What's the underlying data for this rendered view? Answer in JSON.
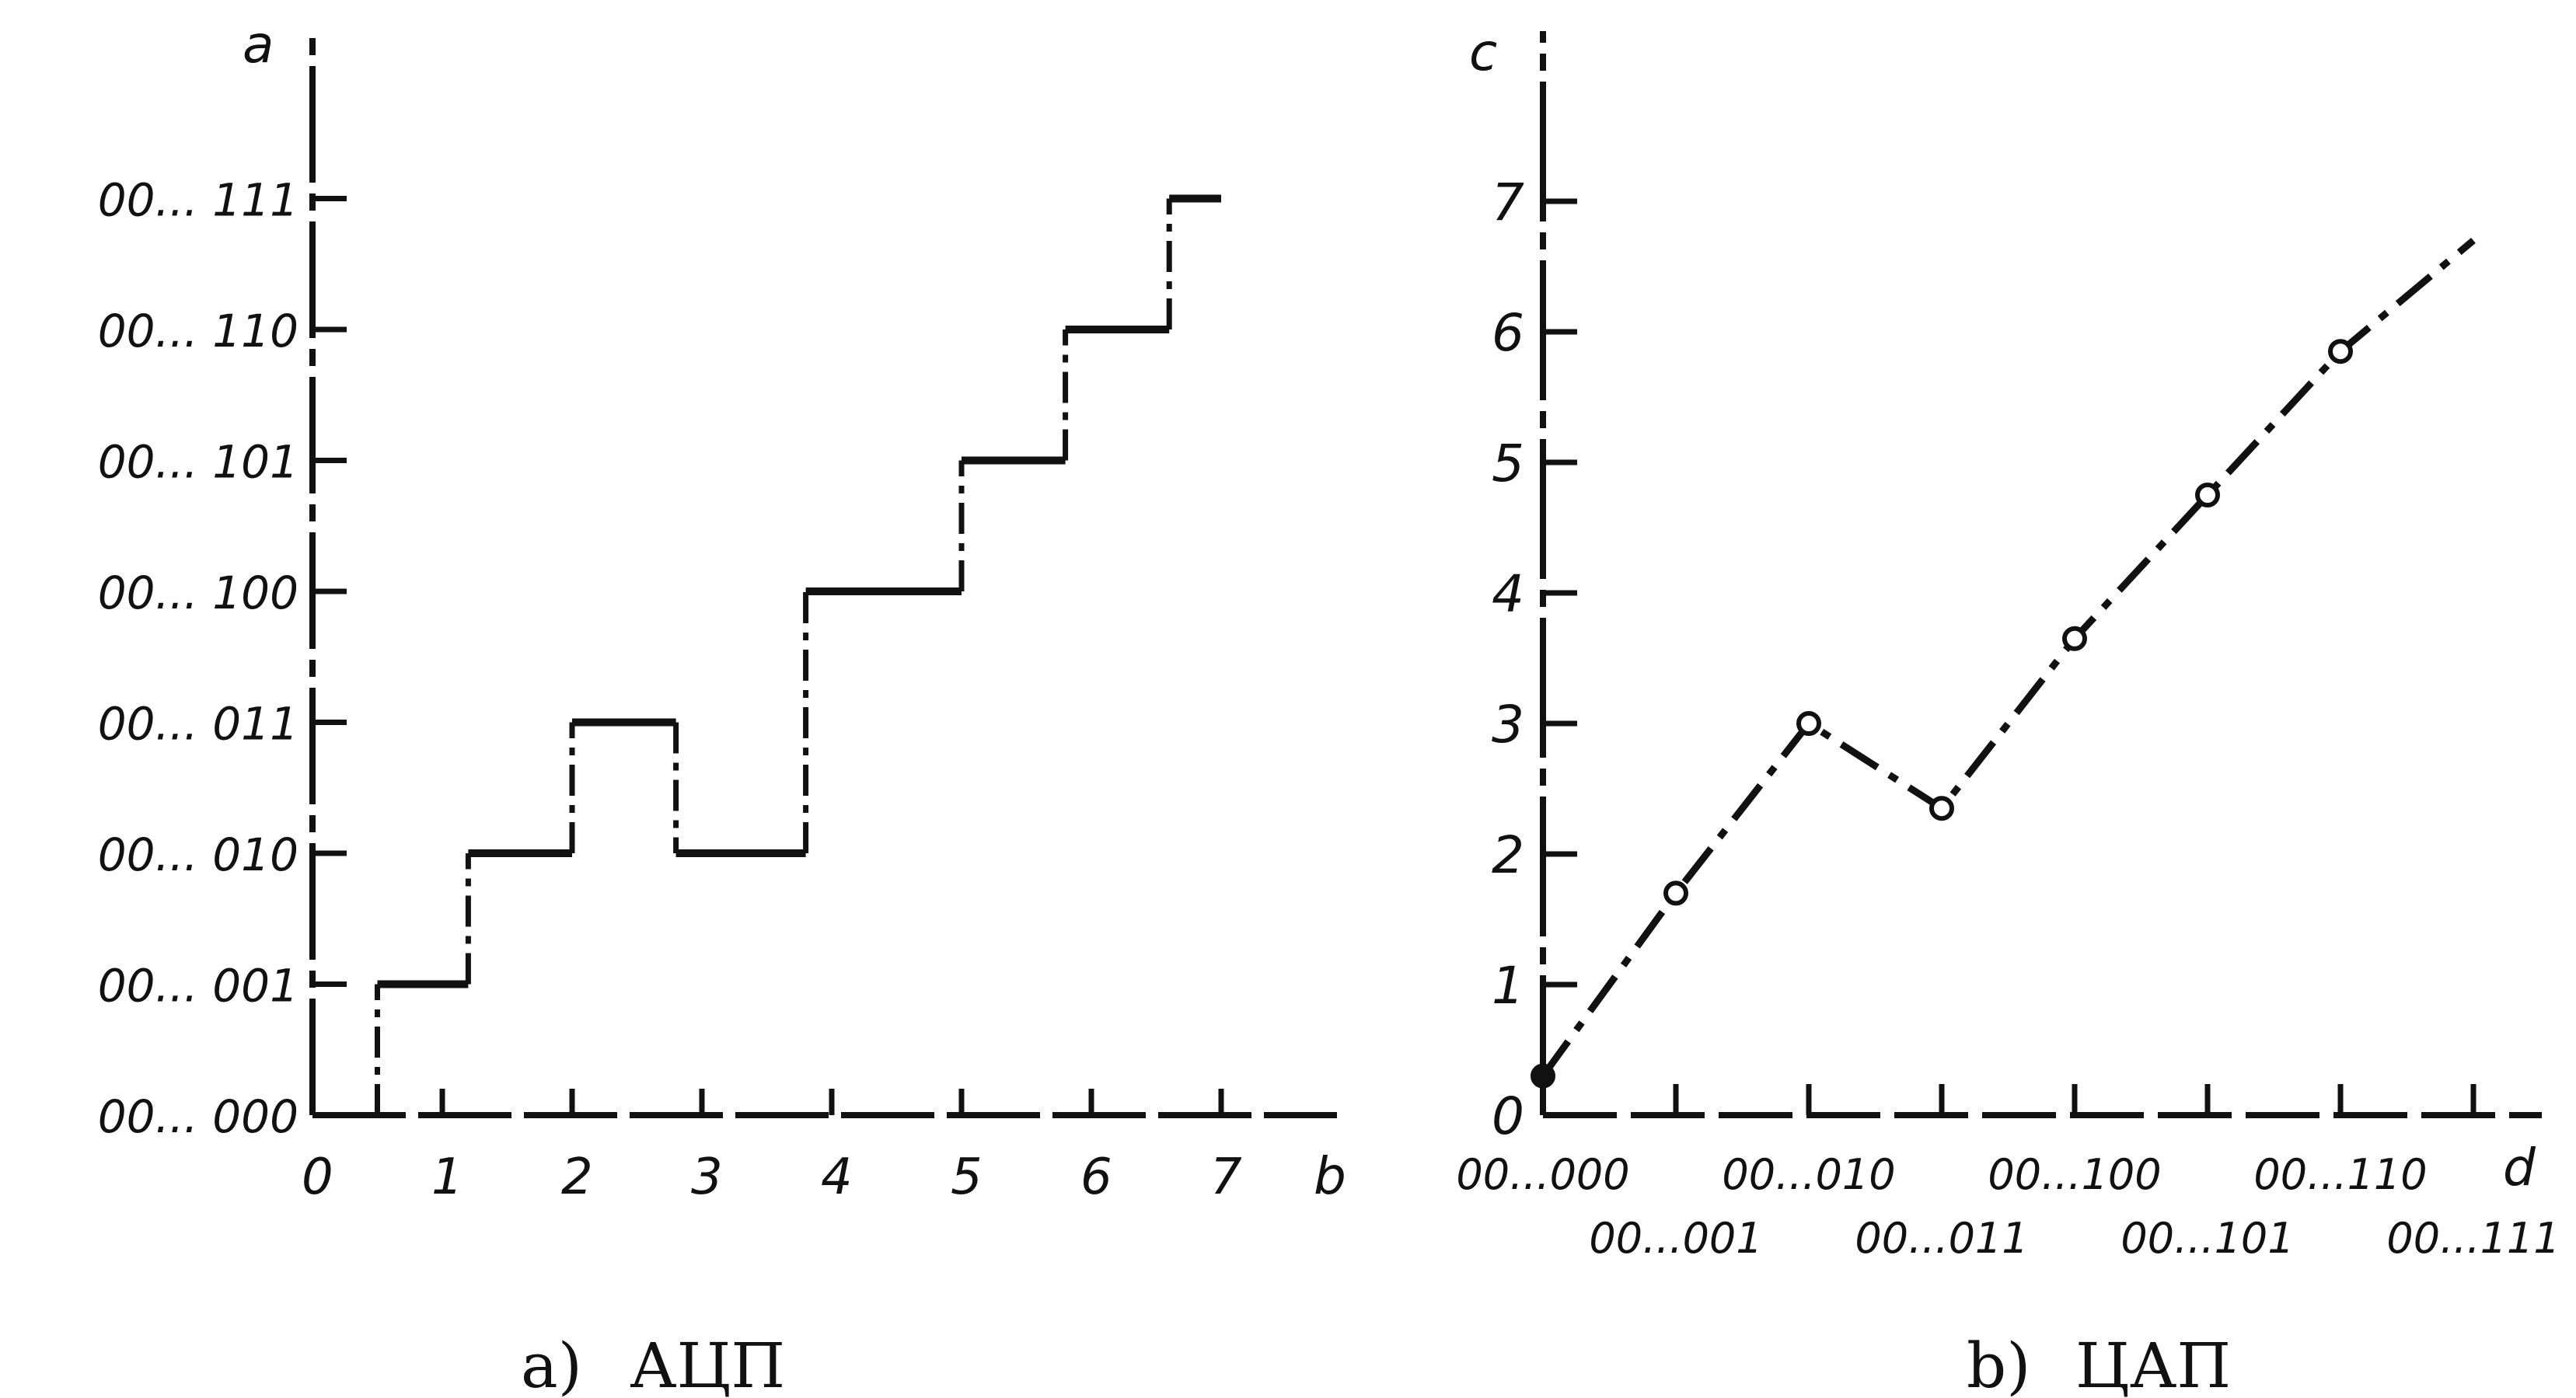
{
  "chart_data": [
    {
      "type": "line",
      "panel_label": "a)",
      "caption": "АЦП",
      "xlabel": "b",
      "ylabel": "a",
      "x_ticks": [
        "0",
        "1",
        "2",
        "3",
        "4",
        "5",
        "6",
        "7"
      ],
      "y_ticks": [
        "00... 000",
        "00... 001",
        "00... 010",
        "00... 011",
        "00... 100",
        "00... 101",
        "00... 110",
        "00... 111"
      ],
      "xlim": [
        0,
        8
      ],
      "ylim": [
        0,
        8
      ],
      "step_series": [
        {
          "x_from": 0.5,
          "x_to": 1.2,
          "y": 1
        },
        {
          "x_from": 1.2,
          "x_to": 2.0,
          "y": 2
        },
        {
          "x_from": 2.0,
          "x_to": 2.8,
          "y": 3
        },
        {
          "x_from": 2.8,
          "x_to": 3.8,
          "y": 2
        },
        {
          "x_from": 3.8,
          "x_to": 5.0,
          "y": 4
        },
        {
          "x_from": 5.0,
          "x_to": 5.8,
          "y": 5
        },
        {
          "x_from": 5.8,
          "x_to": 6.6,
          "y": 6
        },
        {
          "x_from": 6.6,
          "x_to": 7.0,
          "y": 7
        }
      ],
      "grid": false
    },
    {
      "type": "line",
      "panel_label": "b)",
      "caption": "ЦАП",
      "xlabel": "d",
      "ylabel": "c",
      "x_ticks_row1": [
        "00...000",
        "00...010",
        "00...100",
        "00...110"
      ],
      "x_ticks_row2": [
        "00...001",
        "00...011",
        "00...101",
        "00...111"
      ],
      "y_ticks": [
        "0",
        "1",
        "2",
        "3",
        "4",
        "5",
        "6",
        "7"
      ],
      "xlim": [
        0,
        7
      ],
      "ylim": [
        0,
        7
      ],
      "x": [
        0,
        1,
        2,
        3,
        4,
        5,
        6,
        7
      ],
      "y": [
        0.3,
        1.7,
        3.0,
        2.35,
        3.65,
        4.75,
        5.85,
        6.7
      ],
      "line_style": "dash-dot",
      "grid": false
    }
  ]
}
